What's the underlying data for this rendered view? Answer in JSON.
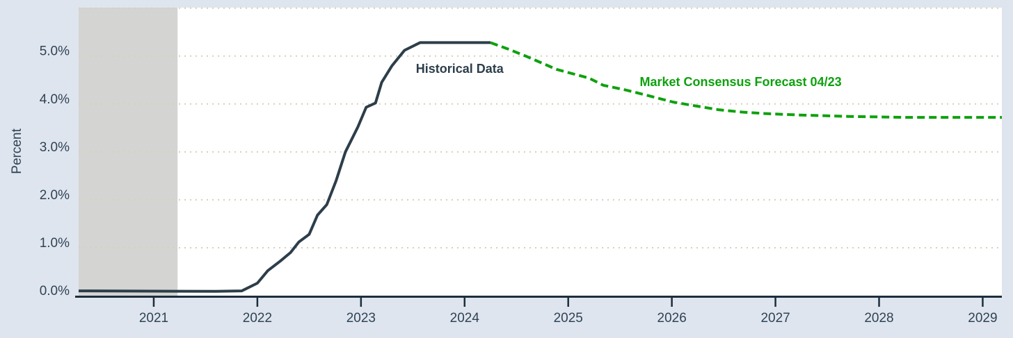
{
  "page": {
    "background_color": "#dfe5ee",
    "plot_background_color": "#ffffff"
  },
  "chart_data": {
    "type": "line",
    "title": "",
    "xlabel": "",
    "ylabel": "Percent",
    "xlim": [
      2020.275,
      2029.185
    ],
    "ylim": [
      0,
      6.01
    ],
    "x_ticks": [
      {
        "value": 2021,
        "label": "2021"
      },
      {
        "value": 2022,
        "label": "2022"
      },
      {
        "value": 2023,
        "label": "2023"
      },
      {
        "value": 2024,
        "label": "2024"
      },
      {
        "value": 2025,
        "label": "2025"
      },
      {
        "value": 2026,
        "label": "2026"
      },
      {
        "value": 2027,
        "label": "2027"
      },
      {
        "value": 2028,
        "label": "2028"
      },
      {
        "value": 2029,
        "label": "2029"
      }
    ],
    "y_ticks": [
      {
        "value": 0,
        "label": "0.0%"
      },
      {
        "value": 1,
        "label": "1.0%"
      },
      {
        "value": 2,
        "label": "2.0%"
      },
      {
        "value": 3,
        "label": "3.0%"
      },
      {
        "value": 4,
        "label": "4.0%"
      },
      {
        "value": 5,
        "label": "5.0%"
      }
    ],
    "grid": {
      "horizontal_dotted_levels": [
        1,
        2,
        3,
        4,
        5,
        6
      ],
      "color": "#d7cfbe"
    },
    "shaded_region": {
      "x_start": 2020.275,
      "x_end": 2021.23,
      "color": "#d4d4d2"
    },
    "axis": {
      "line_color": "#1d2d3c",
      "tick_label_color": "#2e4356"
    },
    "series": [
      {
        "name": "Historical Data",
        "style": "solid",
        "color": "#2c3e4a",
        "width": 4,
        "points": [
          [
            2020.275,
            0.1
          ],
          [
            2021.6,
            0.09
          ],
          [
            2021.85,
            0.1
          ],
          [
            2022.0,
            0.26
          ],
          [
            2022.1,
            0.52
          ],
          [
            2022.22,
            0.72
          ],
          [
            2022.32,
            0.9
          ],
          [
            2022.4,
            1.12
          ],
          [
            2022.5,
            1.28
          ],
          [
            2022.58,
            1.68
          ],
          [
            2022.67,
            1.9
          ],
          [
            2022.76,
            2.4
          ],
          [
            2022.85,
            3.0
          ],
          [
            2022.97,
            3.52
          ],
          [
            2023.05,
            3.93
          ],
          [
            2023.14,
            4.02
          ],
          [
            2023.2,
            4.45
          ],
          [
            2023.3,
            4.8
          ],
          [
            2023.42,
            5.12
          ],
          [
            2023.57,
            5.28
          ],
          [
            2024.25,
            5.28
          ]
        ]
      },
      {
        "name": "Market Consensus Forecast 04/23",
        "style": "dashed",
        "color": "#0ea10e",
        "width": 4,
        "points": [
          [
            2024.25,
            5.28
          ],
          [
            2024.44,
            5.13
          ],
          [
            2024.6,
            4.99
          ],
          [
            2024.89,
            4.72
          ],
          [
            2025.2,
            4.54
          ],
          [
            2025.34,
            4.39
          ],
          [
            2025.56,
            4.29
          ],
          [
            2025.78,
            4.17
          ],
          [
            2026.01,
            4.04
          ],
          [
            2026.23,
            3.96
          ],
          [
            2026.45,
            3.88
          ],
          [
            2026.68,
            3.83
          ],
          [
            2026.9,
            3.8
          ],
          [
            2027.23,
            3.77
          ],
          [
            2027.7,
            3.74
          ],
          [
            2028.24,
            3.72
          ],
          [
            2029.185,
            3.72
          ]
        ]
      }
    ],
    "annotations": [
      {
        "text": "Historical Data",
        "x": 2023.53,
        "y": 4.65,
        "color": "#2c3e4a",
        "bold": true
      },
      {
        "text": "Market Consensus Forecast 04/23",
        "x": 2025.69,
        "y": 4.37,
        "color": "#0ea10e",
        "bold": true
      }
    ],
    "legend": "none"
  }
}
